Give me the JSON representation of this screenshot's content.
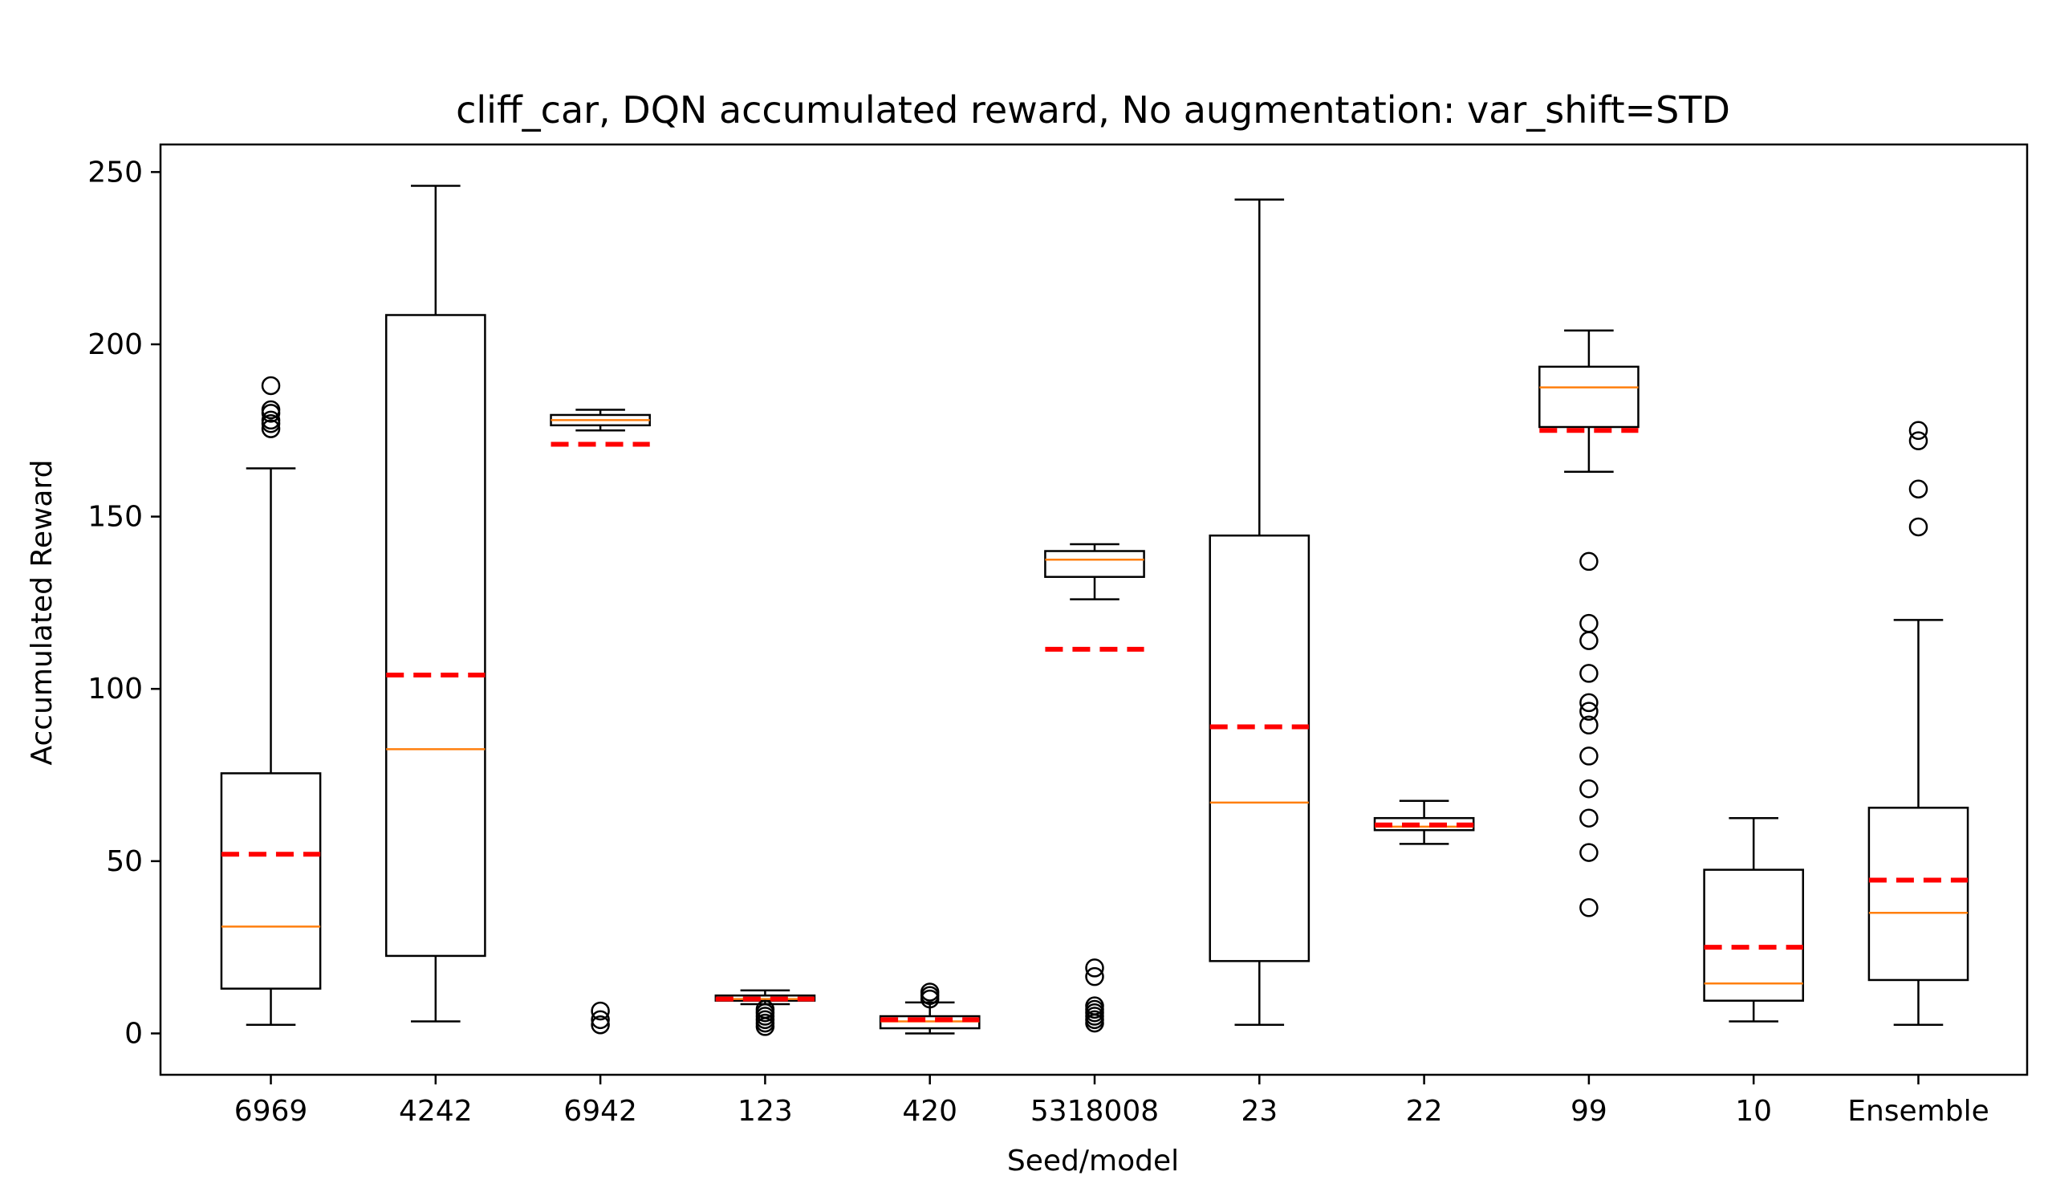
{
  "chart_data": {
    "type": "box",
    "title": "cliff_car, DQN accumulated reward, No augmentation: var_shift=STD",
    "xlabel": "Seed/model",
    "ylabel": "Accumulated Reward",
    "ylim": [
      -12,
      258
    ],
    "yticks": [
      0,
      50,
      100,
      150,
      200,
      250
    ],
    "grid": false,
    "colors": {
      "box": "#000000",
      "median": "#ff7f0e",
      "mean": "#ff0000"
    },
    "categories": [
      "6969",
      "4242",
      "6942",
      "123",
      "420",
      "5318008",
      "23",
      "22",
      "99",
      "10",
      "Ensemble"
    ],
    "boxes": [
      {
        "label": "6969",
        "whislo": 2.5,
        "q1": 13,
        "median": 31,
        "q3": 75.5,
        "whishi": 164,
        "mean": 52,
        "fliers": [
          175.5,
          177,
          178,
          180,
          181,
          188
        ]
      },
      {
        "label": "4242",
        "whislo": 3.5,
        "q1": 22.5,
        "median": 82.5,
        "q3": 208.5,
        "whishi": 246,
        "mean": 104,
        "fliers": []
      },
      {
        "label": "6942",
        "whislo": 175,
        "q1": 176.5,
        "median": 178,
        "q3": 179.5,
        "whishi": 181,
        "mean": 171,
        "fliers": [
          2.5,
          4,
          6.5
        ]
      },
      {
        "label": "123",
        "whislo": 8.5,
        "q1": 9.5,
        "median": 10,
        "q3": 11,
        "whishi": 12.5,
        "mean": 10,
        "fliers": [
          2,
          3,
          4,
          5,
          6,
          7
        ]
      },
      {
        "label": "420",
        "whislo": 0,
        "q1": 1.5,
        "median": 3.5,
        "q3": 5,
        "whishi": 9,
        "mean": 4,
        "fliers": [
          10,
          11,
          12
        ]
      },
      {
        "label": "5318008",
        "whislo": 126,
        "q1": 132.5,
        "median": 137.5,
        "q3": 140,
        "whishi": 142,
        "mean": 111.5,
        "fliers": [
          3,
          4,
          5,
          6,
          7,
          8,
          16.5,
          19
        ]
      },
      {
        "label": "23",
        "whislo": 2.5,
        "q1": 21,
        "median": 67,
        "q3": 144.5,
        "whishi": 242,
        "mean": 89,
        "fliers": []
      },
      {
        "label": "22",
        "whislo": 55,
        "q1": 59,
        "median": 60,
        "q3": 62.5,
        "whishi": 67.5,
        "mean": 60.5,
        "fliers": []
      },
      {
        "label": "99",
        "whislo": 163,
        "q1": 176,
        "median": 187.5,
        "q3": 193.5,
        "whishi": 204,
        "mean": 175,
        "fliers": [
          36.5,
          52.5,
          62.5,
          71,
          80.5,
          89.5,
          93.5,
          96,
          104.5,
          114,
          119,
          137
        ]
      },
      {
        "label": "10",
        "whislo": 3.5,
        "q1": 9.5,
        "median": 14.5,
        "q3": 47.5,
        "whishi": 62.5,
        "mean": 25,
        "fliers": []
      },
      {
        "label": "Ensemble",
        "whislo": 2.5,
        "q1": 15.5,
        "median": 35,
        "q3": 65.5,
        "whishi": 120,
        "mean": 44.5,
        "fliers": [
          147,
          158,
          172,
          175
        ]
      }
    ]
  }
}
